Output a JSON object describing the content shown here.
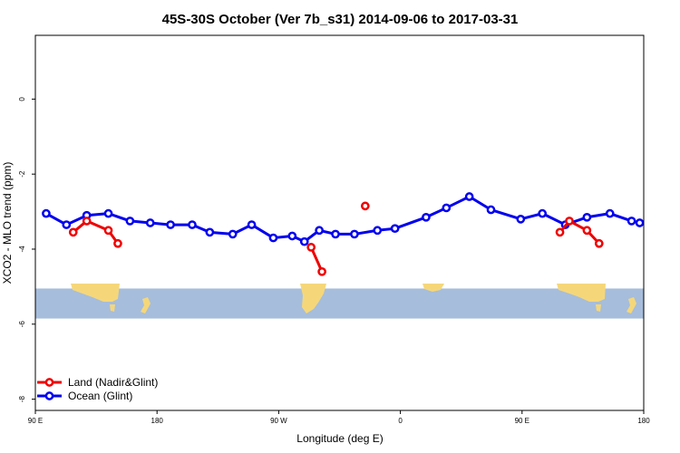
{
  "chart_data": {
    "type": "line",
    "title": "45S-30S October (Ver 7b_s31)   2014-09-06 to 2017-03-31",
    "xlabel": "Longitude (deg E)",
    "ylabel": "XCO2 - MLO trend (ppm)",
    "xlim": [
      90,
      540
    ],
    "ylim": [
      -8.3,
      1.7
    ],
    "x_ticks": [
      {
        "value": 90,
        "label": "90 E"
      },
      {
        "value": 180,
        "label": "180"
      },
      {
        "value": 270,
        "label": "90 W"
      },
      {
        "value": 360,
        "label": "0"
      },
      {
        "value": 450,
        "label": "90 E"
      },
      {
        "value": 540,
        "label": "180"
      }
    ],
    "y_ticks": [
      {
        "value": 0,
        "label": "0"
      },
      {
        "value": -2,
        "label": "-2"
      },
      {
        "value": -4,
        "label": "-4"
      },
      {
        "value": -6,
        "label": "-6"
      },
      {
        "value": -8,
        "label": "-8"
      }
    ],
    "map_band": {
      "ylim": [
        -5.85,
        -5.05
      ],
      "ocean_color": "#a6bddb",
      "land_color": "#f5d77a"
    },
    "legend": {
      "position": "bottom-left"
    },
    "series": [
      {
        "name": "Land (Nadir&Glint)",
        "color": "#ee0000",
        "segments": [
          {
            "x": [
              118,
              128,
              144,
              151
            ],
            "y": [
              -3.55,
              -3.25,
              -3.5,
              -3.85
            ]
          },
          {
            "x": [
              294,
              302
            ],
            "y": [
              -3.95,
              -4.6
            ]
          },
          {
            "x": [
              334
            ],
            "y": [
              -2.85
            ]
          },
          {
            "x": [
              478,
              485,
              498,
              507
            ],
            "y": [
              -3.55,
              -3.25,
              -3.5,
              -3.85
            ]
          }
        ]
      },
      {
        "name": "Ocean (Glint)",
        "color": "#0000ee",
        "segments": [
          {
            "x": [
              98,
              113,
              128,
              144,
              160,
              175,
              190,
              206,
              219,
              236,
              250,
              266,
              280,
              289,
              300,
              312,
              326,
              343,
              356,
              379,
              394,
              411,
              427,
              449,
              465,
              482,
              498,
              515,
              531,
              537
            ],
            "y": [
              -3.05,
              -3.35,
              -3.1,
              -3.05,
              -3.25,
              -3.3,
              -3.35,
              -3.35,
              -3.55,
              -3.6,
              -3.35,
              -3.7,
              -3.65,
              -3.8,
              -3.5,
              -3.6,
              -3.6,
              -3.5,
              -3.45,
              -3.15,
              -2.9,
              -2.6,
              -2.95,
              -3.2,
              -3.05,
              -3.35,
              -3.15,
              -3.05,
              -3.25,
              -3.3
            ]
          }
        ]
      }
    ]
  }
}
